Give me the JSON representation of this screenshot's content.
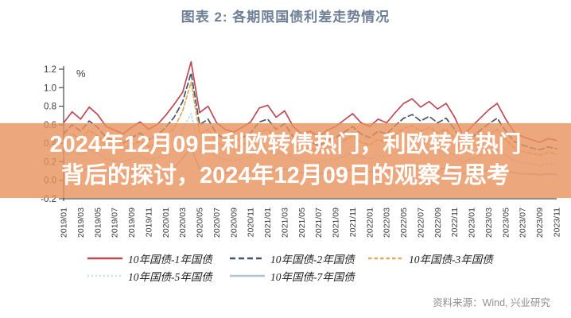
{
  "title": "图表 2:  各期限国债利差走势情况",
  "title_color": "#6E7F96",
  "overlay": {
    "line1": "2024年12月09日利欧转债热门，利欧转债热门",
    "line2": "背后的探讨，2024年12月09日的观察与思考",
    "bg_color": "rgba(232,145,92,0.8)",
    "text_color": "#ffffff"
  },
  "source_note": "资料来源：Wind, 兴业研究",
  "source_color": "#8F8F8F",
  "chart_data": {
    "type": "line",
    "title": "图表 2: 各期限国债利差走势情况",
    "ylabel_unit": "%",
    "ylim": [
      -0.2,
      1.2
    ],
    "yticks": [
      -0.2,
      0.0,
      0.2,
      0.4,
      0.6,
      0.8,
      1.0,
      1.2
    ],
    "grid": false,
    "legend_position": "bottom",
    "x_start": "2019/01",
    "x_freq": "monthly",
    "x_tick_labels": [
      "2019/01",
      "2019/03",
      "2019/05",
      "2019/07",
      "2019/09",
      "2019/11",
      "2020/01",
      "2020/03",
      "2020/05",
      "2020/07",
      "2020/09",
      "2020/11",
      "2021/01",
      "2021/03",
      "2021/05",
      "2021/07",
      "2021/09",
      "2021/11",
      "2022/01",
      "2022/03",
      "2022/05",
      "2022/07",
      "2022/09",
      "2022/11",
      "2023/01",
      "2023/03",
      "2023/05",
      "2023/07",
      "2023/09",
      "2023/11"
    ],
    "axis_color": "#4a4a4a",
    "tick_label_color": "#3a3a3a",
    "series": [
      {
        "name": "10年国债-1年国债",
        "color": "#BC4A55",
        "dash": "",
        "width": 1.7,
        "values": [
          0.62,
          0.74,
          0.66,
          0.79,
          0.71,
          0.58,
          0.54,
          0.5,
          0.57,
          0.63,
          0.55,
          0.6,
          0.7,
          0.82,
          0.95,
          1.28,
          0.73,
          0.8,
          0.62,
          0.55,
          0.52,
          0.57,
          0.63,
          0.78,
          0.81,
          0.68,
          0.75,
          0.58,
          0.5,
          0.53,
          0.47,
          0.54,
          0.58,
          0.65,
          0.72,
          0.62,
          0.58,
          0.66,
          0.62,
          0.73,
          0.83,
          0.88,
          0.79,
          0.85,
          0.77,
          0.83,
          0.68,
          0.48,
          0.58,
          0.67,
          0.76,
          0.83,
          0.66,
          0.52,
          0.47,
          0.44,
          0.41,
          0.45,
          0.43
        ]
      },
      {
        "name": "10年国债-2年国债",
        "color": "#44546A",
        "dash": "7 4",
        "width": 1.7,
        "values": [
          0.5,
          0.6,
          0.53,
          0.64,
          0.57,
          0.46,
          0.43,
          0.4,
          0.46,
          0.51,
          0.44,
          0.48,
          0.57,
          0.68,
          0.85,
          1.16,
          0.6,
          0.66,
          0.5,
          0.44,
          0.42,
          0.46,
          0.51,
          0.63,
          0.66,
          0.55,
          0.61,
          0.47,
          0.4,
          0.42,
          0.37,
          0.43,
          0.46,
          0.52,
          0.58,
          0.5,
          0.46,
          0.53,
          0.5,
          0.59,
          0.67,
          0.71,
          0.64,
          0.69,
          0.62,
          0.67,
          0.55,
          0.38,
          0.46,
          0.54,
          0.61,
          0.67,
          0.53,
          0.42,
          0.38,
          0.35,
          0.33,
          0.36,
          0.34
        ]
      },
      {
        "name": "10年国债-3年国债",
        "color": "#DCAE5A",
        "dash": "4.5 3",
        "width": 1.7,
        "values": [
          0.42,
          0.5,
          0.44,
          0.54,
          0.48,
          0.38,
          0.35,
          0.33,
          0.38,
          0.42,
          0.36,
          0.4,
          0.47,
          0.56,
          0.75,
          1.06,
          0.5,
          0.55,
          0.41,
          0.36,
          0.34,
          0.38,
          0.42,
          0.52,
          0.55,
          0.46,
          0.5,
          0.39,
          0.33,
          0.35,
          0.31,
          0.36,
          0.38,
          0.43,
          0.48,
          0.41,
          0.38,
          0.44,
          0.41,
          0.49,
          0.56,
          0.59,
          0.53,
          0.57,
          0.51,
          0.55,
          0.45,
          0.31,
          0.38,
          0.45,
          0.5,
          0.55,
          0.44,
          0.35,
          0.31,
          0.29,
          0.27,
          0.3,
          0.28
        ]
      },
      {
        "name": "10年国债-5年国债",
        "color": "#BCDFEA",
        "dash": "1.8 3.2",
        "width": 1.9,
        "values": [
          0.26,
          0.31,
          0.27,
          0.33,
          0.29,
          0.23,
          0.21,
          0.2,
          0.23,
          0.26,
          0.22,
          0.24,
          0.29,
          0.34,
          0.55,
          0.72,
          0.31,
          0.34,
          0.25,
          0.22,
          0.21,
          0.23,
          0.26,
          0.32,
          0.34,
          0.28,
          0.31,
          0.24,
          0.2,
          0.21,
          0.19,
          0.22,
          0.23,
          0.26,
          0.29,
          0.25,
          0.23,
          0.27,
          0.25,
          0.3,
          0.34,
          0.36,
          0.32,
          0.35,
          0.31,
          0.33,
          0.27,
          0.19,
          0.23,
          0.27,
          0.3,
          0.33,
          0.27,
          0.21,
          0.19,
          0.18,
          0.16,
          0.18,
          0.17
        ]
      },
      {
        "name": "10年国债-7年国债",
        "color": "#AEC4D5",
        "dash": "",
        "width": 1.7,
        "values": [
          0.1,
          0.12,
          0.1,
          0.13,
          0.11,
          0.09,
          0.08,
          0.07,
          0.09,
          0.1,
          0.08,
          0.09,
          0.11,
          0.13,
          0.24,
          0.35,
          0.12,
          0.13,
          0.1,
          0.08,
          0.08,
          0.09,
          0.1,
          0.12,
          0.13,
          0.11,
          0.12,
          0.09,
          0.08,
          0.08,
          0.07,
          0.08,
          0.09,
          0.1,
          0.11,
          0.09,
          0.09,
          0.1,
          0.09,
          0.11,
          0.13,
          0.14,
          0.12,
          0.13,
          0.12,
          0.13,
          0.1,
          0.07,
          0.09,
          0.1,
          0.11,
          0.13,
          0.1,
          0.08,
          0.07,
          0.07,
          0.06,
          0.07,
          0.06
        ]
      }
    ]
  }
}
